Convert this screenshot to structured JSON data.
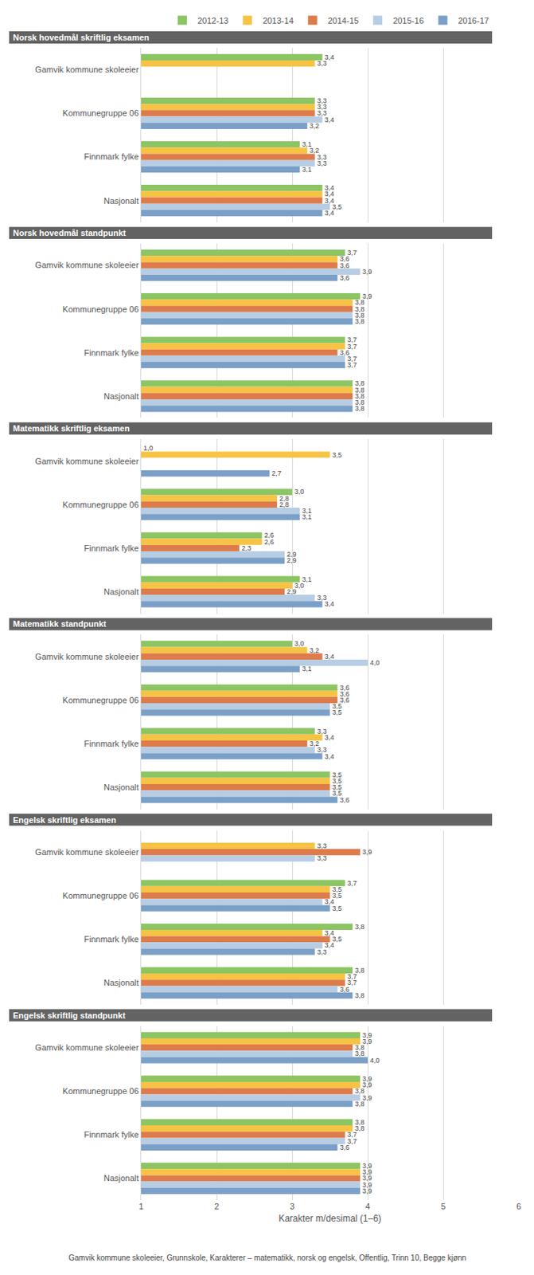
{
  "chart_data": [
    {
      "type": "bar",
      "orientation": "horizontal",
      "title": "Norsk hovedmål skriftlig eksamen",
      "categories": [
        "Gamvik kommune skoleeier",
        "Kommunegruppe 06",
        "Finnmark fylke",
        "Nasjonalt"
      ],
      "series": [
        {
          "name": "2012-13",
          "color": "#8cc564",
          "values": [
            3.4,
            3.3,
            3.1,
            3.4
          ],
          "value_labels": [
            "3,4",
            "3,3",
            "3,1",
            "3,4"
          ]
        },
        {
          "name": "2013-14",
          "color": "#f6c344",
          "values": [
            3.3,
            3.3,
            3.2,
            3.4
          ],
          "value_labels": [
            "3,3",
            "3,3",
            "3,2",
            "3,4"
          ]
        },
        {
          "name": "2014-15",
          "color": "#de7b4b",
          "values": [
            null,
            3.3,
            3.3,
            3.4
          ],
          "value_labels": [
            null,
            "3,3",
            "3,3",
            "3,4"
          ]
        },
        {
          "name": "2015-16",
          "color": "#b7cde3",
          "values": [
            null,
            3.4,
            3.3,
            3.5
          ],
          "value_labels": [
            null,
            "3,4",
            "3,3",
            "3,5"
          ]
        },
        {
          "name": "2016-17",
          "color": "#7ba0c8",
          "values": [
            null,
            3.2,
            3.1,
            3.4
          ],
          "value_labels": [
            null,
            "3,2",
            "3,1",
            "3,4"
          ]
        }
      ],
      "xlim": [
        1,
        6
      ],
      "xticks": [
        1,
        2,
        3,
        4,
        5,
        6
      ],
      "grid": true,
      "data_labels": true,
      "legend": "top",
      "tick_labels": "y"
    },
    {
      "type": "bar",
      "orientation": "horizontal",
      "title": "Norsk hovedmål standpunkt",
      "categories": [
        "Gamvik kommune skoleeier",
        "Kommunegruppe 06",
        "Finnmark fylke",
        "Nasjonalt"
      ],
      "series": [
        {
          "name": "2012-13",
          "color": "#8cc564",
          "values": [
            3.7,
            3.9,
            3.7,
            3.8
          ],
          "value_labels": [
            "3,7",
            "3,9",
            "3,7",
            "3,8"
          ]
        },
        {
          "name": "2013-14",
          "color": "#f6c344",
          "values": [
            3.6,
            3.8,
            3.7,
            3.8
          ],
          "value_labels": [
            "3,6",
            "3,8",
            "3,7",
            "3,8"
          ]
        },
        {
          "name": "2014-15",
          "color": "#de7b4b",
          "values": [
            3.6,
            3.8,
            3.6,
            3.8
          ],
          "value_labels": [
            "3,6",
            "3,8",
            "3,6",
            "3,8"
          ]
        },
        {
          "name": "2015-16",
          "color": "#b7cde3",
          "values": [
            3.9,
            3.8,
            3.7,
            3.8
          ],
          "value_labels": [
            "3,9",
            "3,8",
            "3,7",
            "3,8"
          ]
        },
        {
          "name": "2016-17",
          "color": "#7ba0c8",
          "values": [
            3.6,
            3.8,
            3.7,
            3.8
          ],
          "value_labels": [
            "3,6",
            "3,8",
            "3,7",
            "3,8"
          ]
        }
      ],
      "xlim": [
        1,
        6
      ],
      "xticks": [
        1,
        2,
        3,
        4,
        5,
        6
      ],
      "grid": true,
      "data_labels": true,
      "tick_labels": "y"
    },
    {
      "type": "bar",
      "orientation": "horizontal",
      "title": "Matematikk skriftlig eksamen",
      "categories": [
        "Gamvik kommune skoleeier",
        "Kommunegruppe 06",
        "Finnmark fylke",
        "Nasjonalt"
      ],
      "series": [
        {
          "name": "2012-13",
          "color": "#8cc564",
          "values": [
            1.0,
            3.0,
            2.6,
            3.1
          ],
          "value_labels": [
            "1,0",
            "3,0",
            "2,6",
            "3,1"
          ]
        },
        {
          "name": "2013-14",
          "color": "#f6c344",
          "values": [
            3.5,
            2.8,
            2.6,
            3.0
          ],
          "value_labels": [
            "3,5",
            "2,8",
            "2,6",
            "3,0"
          ]
        },
        {
          "name": "2014-15",
          "color": "#de7b4b",
          "values": [
            null,
            2.8,
            2.3,
            2.9
          ],
          "value_labels": [
            null,
            "2,8",
            "2,3",
            "2,9"
          ]
        },
        {
          "name": "2015-16",
          "color": "#b7cde3",
          "values": [
            null,
            3.1,
            2.9,
            3.3
          ],
          "value_labels": [
            null,
            "3,1",
            "2,9",
            "3,3"
          ]
        },
        {
          "name": "2016-17",
          "color": "#7ba0c8",
          "values": [
            2.7,
            3.1,
            2.9,
            3.4
          ],
          "value_labels": [
            "2,7",
            "3,1",
            "2,9",
            "3,4"
          ]
        }
      ],
      "xlim": [
        1,
        6
      ],
      "xticks": [
        1,
        2,
        3,
        4,
        5,
        6
      ],
      "grid": true,
      "data_labels": true,
      "tick_labels": "y"
    },
    {
      "type": "bar",
      "orientation": "horizontal",
      "title": "Matematikk standpunkt",
      "categories": [
        "Gamvik kommune skoleeier",
        "Kommunegruppe 06",
        "Finnmark fylke",
        "Nasjonalt"
      ],
      "series": [
        {
          "name": "2012-13",
          "color": "#8cc564",
          "values": [
            3.0,
            3.6,
            3.3,
            3.5
          ],
          "value_labels": [
            "3,0",
            "3,6",
            "3,3",
            "3,5"
          ]
        },
        {
          "name": "2013-14",
          "color": "#f6c344",
          "values": [
            3.2,
            3.6,
            3.4,
            3.5
          ],
          "value_labels": [
            "3,2",
            "3,6",
            "3,4",
            "3,5"
          ]
        },
        {
          "name": "2014-15",
          "color": "#de7b4b",
          "values": [
            3.4,
            3.6,
            3.2,
            3.5
          ],
          "value_labels": [
            "3,4",
            "3,6",
            "3,2",
            "3,5"
          ]
        },
        {
          "name": "2015-16",
          "color": "#b7cde3",
          "values": [
            4.0,
            3.5,
            3.3,
            3.5
          ],
          "value_labels": [
            "4,0",
            "3,5",
            "3,3",
            "3,5"
          ]
        },
        {
          "name": "2016-17",
          "color": "#7ba0c8",
          "values": [
            3.1,
            3.5,
            3.4,
            3.6
          ],
          "value_labels": [
            "3,1",
            "3,5",
            "3,4",
            "3,6"
          ]
        }
      ],
      "xlim": [
        1,
        6
      ],
      "xticks": [
        1,
        2,
        3,
        4,
        5,
        6
      ],
      "grid": true,
      "data_labels": true,
      "tick_labels": "y"
    },
    {
      "type": "bar",
      "orientation": "horizontal",
      "title": "Engelsk skriftlig eksamen",
      "categories": [
        "Gamvik kommune skoleeier",
        "Kommunegruppe 06",
        "Finnmark fylke",
        "Nasjonalt"
      ],
      "series": [
        {
          "name": "2012-13",
          "color": "#8cc564",
          "values": [
            null,
            3.7,
            3.8,
            3.8
          ],
          "value_labels": [
            null,
            "3,7",
            "3,8",
            "3,8"
          ]
        },
        {
          "name": "2013-14",
          "color": "#f6c344",
          "values": [
            3.3,
            3.5,
            3.4,
            3.7
          ],
          "value_labels": [
            "3,3",
            "3,5",
            "3,4",
            "3,7"
          ]
        },
        {
          "name": "2014-15",
          "color": "#de7b4b",
          "values": [
            3.9,
            3.5,
            3.5,
            3.7
          ],
          "value_labels": [
            "3,9",
            "3,5",
            "3,5",
            "3,7"
          ]
        },
        {
          "name": "2015-16",
          "color": "#b7cde3",
          "values": [
            3.3,
            3.4,
            3.4,
            3.6
          ],
          "value_labels": [
            "3,3",
            "3,4",
            "3,4",
            "3,6"
          ]
        },
        {
          "name": "2016-17",
          "color": "#7ba0c8",
          "values": [
            null,
            3.5,
            3.3,
            3.8
          ],
          "value_labels": [
            null,
            "3,5",
            "3,3",
            "3,8"
          ]
        }
      ],
      "xlim": [
        1,
        6
      ],
      "xticks": [
        1,
        2,
        3,
        4,
        5,
        6
      ],
      "grid": true,
      "data_labels": true,
      "tick_labels": "y"
    },
    {
      "type": "bar",
      "orientation": "horizontal",
      "title": "Engelsk skriftlig standpunkt",
      "categories": [
        "Gamvik kommune skoleeier",
        "Kommunegruppe 06",
        "Finnmark fylke",
        "Nasjonalt"
      ],
      "series": [
        {
          "name": "2012-13",
          "color": "#8cc564",
          "values": [
            3.9,
            3.9,
            3.8,
            3.9
          ],
          "value_labels": [
            "3,9",
            "3,9",
            "3,8",
            "3,9"
          ]
        },
        {
          "name": "2013-14",
          "color": "#f6c344",
          "values": [
            3.9,
            3.9,
            3.8,
            3.9
          ],
          "value_labels": [
            "3,9",
            "3,9",
            "3,8",
            "3,9"
          ]
        },
        {
          "name": "2014-15",
          "color": "#de7b4b",
          "values": [
            3.8,
            3.8,
            3.7,
            3.9
          ],
          "value_labels": [
            "3,8",
            "3,8",
            "3,7",
            "3,9"
          ]
        },
        {
          "name": "2015-16",
          "color": "#b7cde3",
          "values": [
            3.8,
            3.9,
            3.7,
            3.9
          ],
          "value_labels": [
            "3,8",
            "3,9",
            "3,7",
            "3,9"
          ]
        },
        {
          "name": "2016-17",
          "color": "#7ba0c8",
          "values": [
            4.0,
            3.8,
            3.6,
            3.9
          ],
          "value_labels": [
            "4,0",
            "3,8",
            "3,6",
            "3,9"
          ]
        }
      ],
      "xlim": [
        1,
        6
      ],
      "xticks": [
        1,
        2,
        3,
        4,
        5,
        6
      ],
      "grid": true,
      "data_labels": true,
      "x_label": "Karakter m/desimal (1–6)",
      "annotations": [
        "Gamvik kommune skoleeier, Grunnskole, Karakterer – matematikk, norsk og engelsk, Offentlig, Trinn 10, Begge kjønn"
      ]
    }
  ]
}
